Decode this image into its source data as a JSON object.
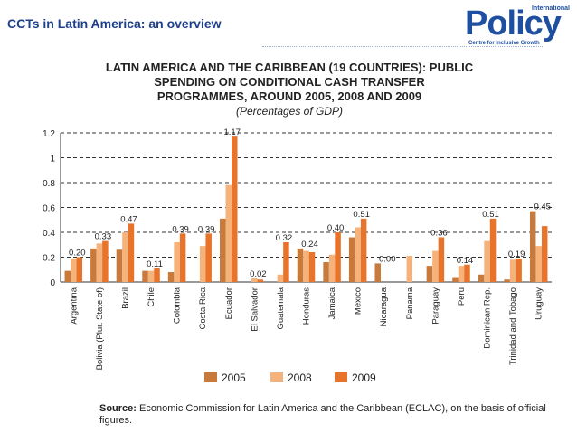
{
  "slide": {
    "title": "CCTs in Latin America: an overview"
  },
  "logo": {
    "top_text": "International",
    "main_text": "Policy",
    "sub_text": "Centre for Inclusive Growth",
    "color": "#1f4fa0"
  },
  "chart_data": {
    "type": "bar",
    "title_lines": [
      "LATIN AMERICA AND THE CARIBBEAN (19 COUNTRIES): PUBLIC",
      "SPENDING ON CONDITIONAL CASH TRANSFER",
      "PROGRAMMES, AROUND 2005, 2008 AND 2009"
    ],
    "subtitle": "(Percentages of GDP)",
    "categories": [
      "Argentina",
      "Bolivia (Plur. State of)",
      "Brazil",
      "Chile",
      "Colombia",
      "Costa Rica",
      "Ecuador",
      "El Salvador",
      "Guatemala",
      "Honduras",
      "Jamaica",
      "Mexico",
      "Nicaragua",
      "Panama",
      "Paraguay",
      "Peru",
      "Dominican Rep.",
      "Trinidad and Tobago",
      "Uruguay"
    ],
    "series": [
      {
        "name": "2005",
        "color": "#c87a3c",
        "values": [
          0.09,
          0.27,
          0.26,
          0.09,
          0.08,
          null,
          0.51,
          null,
          null,
          0.27,
          0.16,
          0.36,
          0.15,
          null,
          0.13,
          0.04,
          0.06,
          0.02,
          0.57
        ]
      },
      {
        "name": "2008",
        "color": "#f5b27a",
        "values": [
          0.19,
          0.31,
          0.4,
          0.09,
          0.32,
          0.29,
          0.78,
          0.03,
          0.06,
          0.25,
          0.22,
          0.44,
          null,
          0.21,
          0.25,
          0.13,
          0.33,
          0.18,
          0.29
        ]
      },
      {
        "name": "2009",
        "color": "#e8732a",
        "values": [
          0.2,
          0.33,
          0.47,
          0.11,
          0.39,
          0.39,
          1.17,
          0.02,
          0.32,
          0.24,
          0.4,
          0.51,
          0.0,
          null,
          0.36,
          0.14,
          0.51,
          0.19,
          0.45
        ]
      }
    ],
    "data_labels": [
      "0.20",
      "0.33",
      "0.47",
      "0.11",
      "0.39",
      "0.39",
      "1.17",
      "0.02",
      "0.32",
      "0.24",
      "0.40",
      "0.51",
      "0.00",
      "",
      "0.36",
      "0.14",
      "0.51",
      "0.19",
      "0.45"
    ],
    "yticks": [
      "0",
      "0.2",
      "0.4",
      "0.6",
      "0.8",
      "1",
      "1.2"
    ],
    "ylim": [
      0,
      1.2
    ],
    "grid": true,
    "legend": [
      "2005",
      "2008",
      "2009"
    ],
    "legend_position": "bottom"
  },
  "source": {
    "label": "Source:",
    "text": "Economic Commission for Latin America and the Caribbean (ECLAC), on the basis of official figures."
  }
}
